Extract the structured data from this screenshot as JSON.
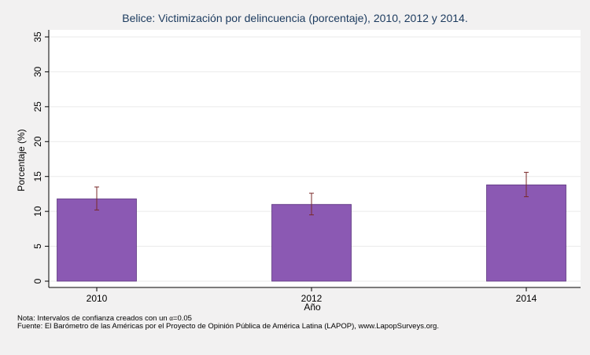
{
  "chart_data": {
    "type": "bar",
    "title": "Belice: Victimización por delincuencia (porcentaje), 2010, 2012 y 2014.",
    "xlabel": "Año",
    "ylabel": "Porcentaje (%)",
    "categories": [
      "2010",
      "2012",
      "2014"
    ],
    "values": [
      11.8,
      11.0,
      13.8
    ],
    "ci_low": [
      10.2,
      9.5,
      12.1
    ],
    "ci_high": [
      13.5,
      12.6,
      15.6
    ],
    "ylim": [
      0,
      35
    ],
    "yticks": [
      0,
      5,
      10,
      15,
      20,
      25,
      30,
      35
    ],
    "grid": true,
    "bar_color": "#8b59b3",
    "errorbar_color": "#7a2a2a"
  },
  "notes": {
    "note": "Nota: Intervalos de confianza creados con un",
    "alpha_symbol": "α",
    "alpha_value": "=0.05",
    "source": "Fuente: El Barómetro de las Américas por el Proyecto de Opinión Pública de América Latina (LAPOP), www.LapopSurveys.org."
  }
}
